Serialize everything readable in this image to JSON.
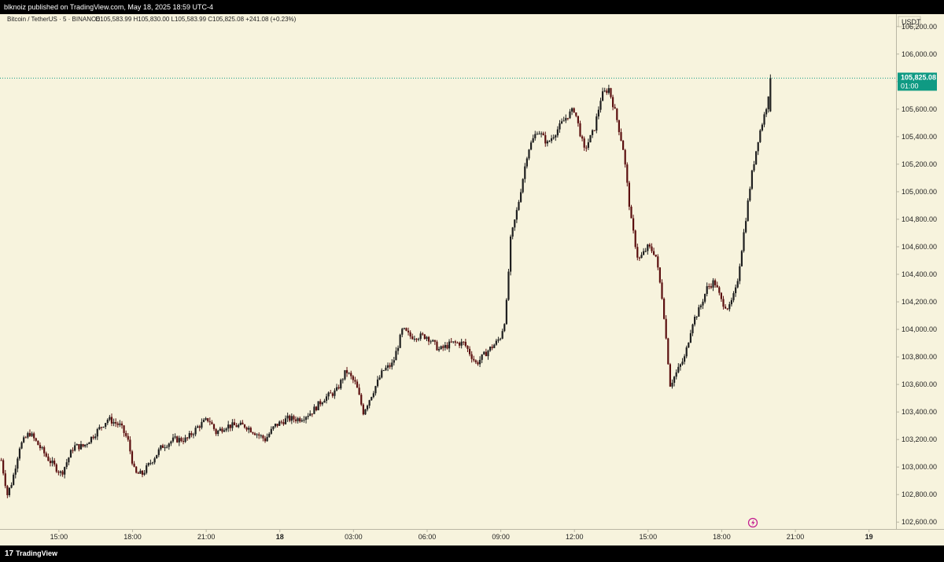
{
  "header": {
    "published_text": "blknoiz published on TradingView.com, May 18, 2025 18:59 UTC-4"
  },
  "footer": {
    "brand": "TradingView",
    "logo_glyph": "17"
  },
  "legend": {
    "symbol": "Bitcoin / TetherUS · 5 · BINANCE",
    "ohlc": "O105,583.99 H105,830.00 L105,583.99 C105,825.08 +241.08 (+0.23%)"
  },
  "price_axis": {
    "currency": "USDT"
  },
  "last_price": {
    "value_label": "105,825.08",
    "countdown": "01:00"
  },
  "colors": {
    "background": "#f7f3dd",
    "candle": "#1f1f1f",
    "down_accent": "#5b0f0f",
    "last_price": "#0f9a83"
  },
  "chart_data": {
    "type": "candlestick",
    "title": "Bitcoin / TetherUS · 5 · BINANCE",
    "ylabel": "USDT",
    "y_ticks": [
      "106,200.00",
      "106,000.00",
      "105,800.00",
      "105,600.00",
      "105,400.00",
      "105,200.00",
      "105,000.00",
      "104,800.00",
      "104,600.00",
      "104,400.00",
      "104,200.00",
      "104,000.00",
      "103,800.00",
      "103,600.00",
      "103,400.00",
      "103,200.00",
      "103,000.00",
      "102,800.00",
      "102,600.00"
    ],
    "x_ticks": [
      "15:00",
      "18:00",
      "21:00",
      "18",
      "03:00",
      "06:00",
      "09:00",
      "12:00",
      "15:00",
      "18:00",
      "21:00",
      "19"
    ],
    "ylim": [
      102550,
      106290
    ],
    "x_tick_hours": [
      15,
      18,
      21,
      24,
      27,
      30,
      33,
      36,
      39,
      42,
      45,
      48
    ],
    "x_range_hours": [
      12.6,
      49.1
    ],
    "last_price": 105825.08,
    "grid": false,
    "path_hours": [
      12.65,
      12.9,
      13.1,
      13.4,
      13.8,
      14.2,
      14.6,
      15.1,
      15.6,
      16.0,
      16.5,
      17.0,
      17.5,
      17.8,
      18.1,
      18.4,
      18.8,
      19.2,
      19.7,
      20.2,
      20.7,
      21.1,
      21.4,
      21.8,
      22.2,
      22.6,
      23.0,
      23.4,
      23.8,
      24.3,
      24.8,
      25.3,
      25.8,
      26.3,
      26.7,
      27.1,
      27.4,
      27.8,
      28.2,
      28.6,
      29.0,
      29.3,
      29.6,
      30.0,
      30.5,
      31.0,
      31.5,
      32.0,
      32.5,
      32.8,
      33.0,
      33.2,
      33.4,
      33.7,
      34.1,
      34.5,
      34.9,
      35.3,
      35.7,
      36.0,
      36.4,
      36.8,
      37.1,
      37.4,
      37.7,
      38.0,
      38.3,
      38.6,
      39.0,
      39.3,
      39.6,
      39.9,
      40.2,
      40.5,
      40.8,
      41.1,
      41.4,
      41.7,
      42.0,
      42.3,
      42.6,
      42.9,
      43.2,
      43.5,
      43.8,
      44.0
    ],
    "path_prices": [
      103050,
      102800,
      102900,
      103150,
      103250,
      103150,
      103050,
      102950,
      103150,
      103150,
      103250,
      103350,
      103300,
      103200,
      102950,
      102950,
      103050,
      103150,
      103200,
      103200,
      103300,
      103350,
      103250,
      103300,
      103300,
      103300,
      103250,
      103200,
      103300,
      103350,
      103350,
      103400,
      103500,
      103550,
      103700,
      103600,
      103400,
      103550,
      103700,
      103750,
      104000,
      103950,
      103950,
      103950,
      103850,
      103900,
      103900,
      103750,
      103850,
      103900,
      103950,
      104100,
      104650,
      104900,
      105300,
      105450,
      105350,
      105450,
      105550,
      105600,
      105300,
      105450,
      105700,
      105750,
      105550,
      105300,
      104800,
      104500,
      104600,
      104550,
      104200,
      103600,
      103700,
      103800,
      104050,
      104150,
      104300,
      104350,
      104200,
      104150,
      104300,
      104700,
      105100,
      105400,
      105600,
      105825
    ]
  }
}
